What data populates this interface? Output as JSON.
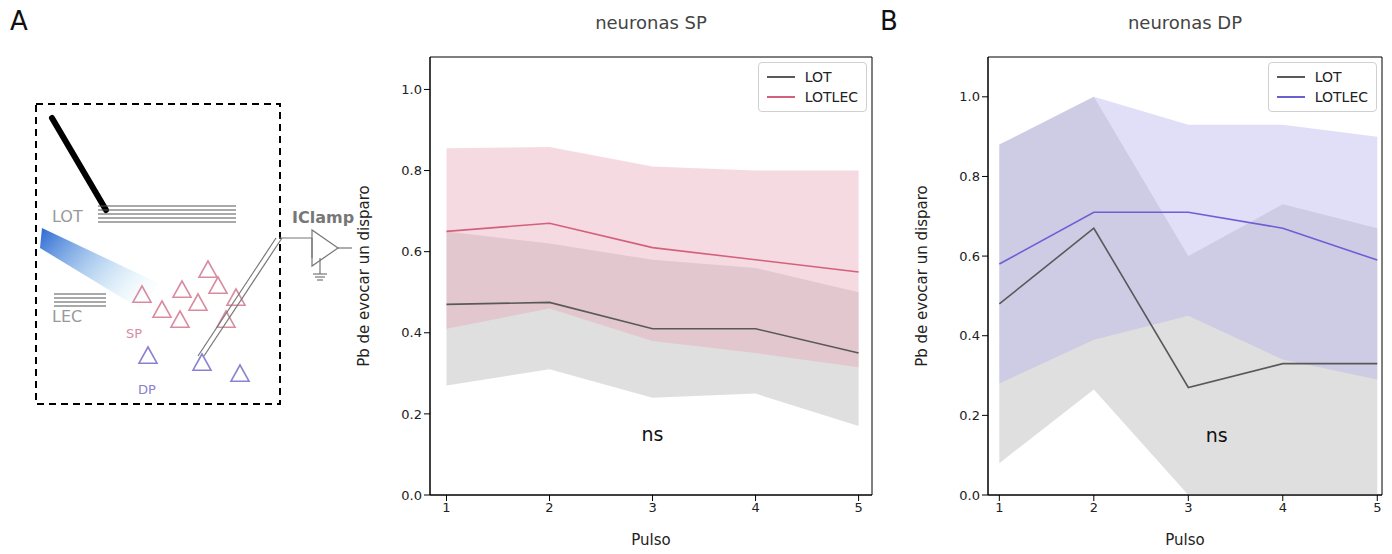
{
  "diagram": {
    "panel_label": "A",
    "labels": {
      "lot": "LOT",
      "lec": "LEC",
      "sp": "SP",
      "dp": "DP",
      "recording": "IClamp"
    }
  },
  "chart_data": [
    {
      "type": "line",
      "title": "neuronas SP",
      "x_label": "Pulso",
      "y_label": "Pb de evocar un disparo",
      "x": [
        1,
        2,
        3,
        4,
        5
      ],
      "xlim": [
        0.84,
        5.13
      ],
      "xticks": [
        1,
        2,
        3,
        4,
        5
      ],
      "ylim": [
        0,
        1.08
      ],
      "yticks": [
        {
          "value": 0,
          "label": "0.0"
        },
        {
          "value": 0.2,
          "label": "0.2"
        },
        {
          "value": 0.4,
          "label": "0.4"
        },
        {
          "value": 0.6,
          "label": "0.6"
        },
        {
          "value": 0.8,
          "label": "0.8"
        },
        {
          "value": 1,
          "label": "1.0"
        }
      ],
      "grid": false,
      "legend": "upper right",
      "series": [
        {
          "name": "LOT",
          "color": "#595959",
          "band_color": "#b0b0b0",
          "values": [
            0.47,
            0.475,
            0.41,
            0.41,
            0.35
          ],
          "ci_low": [
            0.27,
            0.31,
            0.24,
            0.25,
            0.17
          ],
          "ci_high": [
            0.65,
            0.62,
            0.58,
            0.56,
            0.5
          ]
        },
        {
          "name": "LOTLEC",
          "color": "#d4607c",
          "band_color": "#e9a2b3",
          "values": [
            0.65,
            0.67,
            0.61,
            0.58,
            0.55
          ],
          "ci_low": [
            0.41,
            0.46,
            0.38,
            0.35,
            0.315
          ],
          "ci_high": [
            0.855,
            0.858,
            0.81,
            0.8,
            0.8
          ]
        }
      ],
      "annotations": [
        {
          "text": "ns",
          "x": 3,
          "y": 0.15
        }
      ]
    },
    {
      "type": "line",
      "panel_label": "B",
      "title": "neuronas DP",
      "x_label": "Pulso",
      "y_label": "Pb de evocar un disparo",
      "x": [
        1,
        2,
        3,
        4,
        5
      ],
      "xlim": [
        0.88,
        5.05
      ],
      "xticks": [
        1,
        2,
        3,
        4,
        5
      ],
      "ylim": [
        0,
        1.1
      ],
      "yticks": [
        {
          "value": 0,
          "label": "0.0"
        },
        {
          "value": 0.2,
          "label": "0.2"
        },
        {
          "value": 0.4,
          "label": "0.4"
        },
        {
          "value": 0.6,
          "label": "0.6"
        },
        {
          "value": 0.8,
          "label": "0.8"
        },
        {
          "value": 1,
          "label": "1.0"
        }
      ],
      "grid": false,
      "legend": "upper right",
      "series": [
        {
          "name": "LOT",
          "color": "#595959",
          "band_color": "#b0b0b0",
          "values": [
            0.48,
            0.67,
            0.27,
            0.33,
            0.33
          ],
          "ci_low": [
            0.08,
            0.265,
            0.0,
            0.0,
            0.0
          ],
          "ci_high": [
            0.88,
            1.0,
            0.6,
            0.73,
            0.67
          ]
        },
        {
          "name": "LOTLEC",
          "color": "#6a60d4",
          "band_color": "#b3acec",
          "values": [
            0.58,
            0.71,
            0.71,
            0.67,
            0.59
          ],
          "ci_low": [
            0.28,
            0.39,
            0.45,
            0.34,
            0.29
          ],
          "ci_high": [
            0.88,
            1.0,
            0.93,
            0.93,
            0.9
          ]
        }
      ],
      "annotations": [
        {
          "text": "ns",
          "x": 3.3,
          "y": 0.15
        }
      ]
    }
  ]
}
